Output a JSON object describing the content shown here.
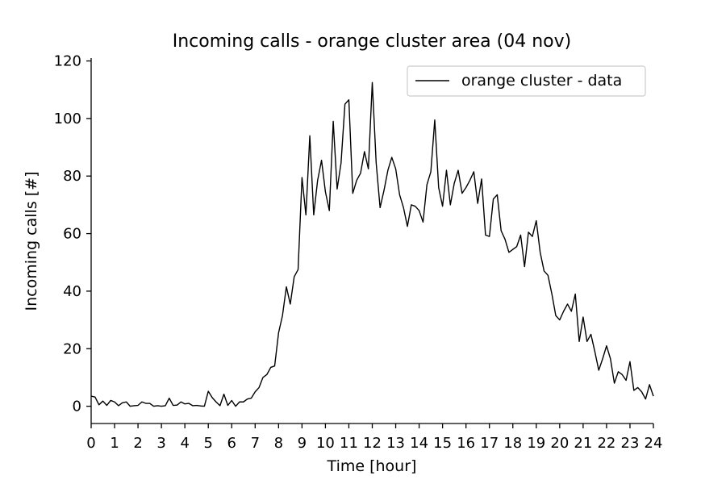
{
  "chart_data": {
    "type": "line",
    "title": "Incoming calls - orange cluster area (04 nov)",
    "xlabel": "Time [hour]",
    "ylabel": "Incoming calls [#]",
    "xlim": [
      0,
      24
    ],
    "ylim": [
      -6,
      121
    ],
    "xticks": [
      0,
      1,
      2,
      3,
      4,
      5,
      6,
      7,
      8,
      9,
      10,
      11,
      12,
      13,
      14,
      15,
      16,
      17,
      18,
      19,
      20,
      21,
      22,
      23,
      24
    ],
    "yticks": [
      0,
      20,
      40,
      60,
      80,
      100,
      120
    ],
    "grid": false,
    "legend_position": "top-right",
    "series": [
      {
        "name": "orange cluster - data",
        "color": "#000000",
        "x": [
          0,
          0.1667,
          0.3333,
          0.5,
          0.6667,
          0.8333,
          1,
          1.1667,
          1.3333,
          1.5,
          1.6667,
          1.8333,
          2,
          2.1667,
          2.3333,
          2.5,
          2.6667,
          2.8333,
          3,
          3.1667,
          3.3333,
          3.5,
          3.6667,
          3.8333,
          4,
          4.1667,
          4.3333,
          4.5,
          4.6667,
          4.8333,
          5,
          5.1667,
          5.3333,
          5.5,
          5.6667,
          5.8333,
          6,
          6.1667,
          6.3333,
          6.5,
          6.6667,
          6.8333,
          7,
          7.1667,
          7.3333,
          7.5,
          7.6667,
          7.8333,
          8,
          8.1667,
          8.3333,
          8.5,
          8.6667,
          8.8333,
          9,
          9.1667,
          9.3333,
          9.5,
          9.6667,
          9.8333,
          10,
          10.1667,
          10.3333,
          10.5,
          10.6667,
          10.8333,
          11,
          11.1667,
          11.3333,
          11.5,
          11.6667,
          11.8333,
          12,
          12.1667,
          12.3333,
          12.5,
          12.6667,
          12.8333,
          13,
          13.1667,
          13.3333,
          13.5,
          13.6667,
          13.8333,
          14,
          14.1667,
          14.3333,
          14.5,
          14.6667,
          14.8333,
          15,
          15.1667,
          15.3333,
          15.5,
          15.6667,
          15.8333,
          16,
          16.1667,
          16.3333,
          16.5,
          16.6667,
          16.8333,
          17,
          17.1667,
          17.3333,
          17.5,
          17.6667,
          17.8333,
          18,
          18.1667,
          18.3333,
          18.5,
          18.6667,
          18.8333,
          19,
          19.1667,
          19.3333,
          19.5,
          19.6667,
          19.8333,
          20,
          20.1667,
          20.3333,
          20.5,
          20.6667,
          20.8333,
          21,
          21.1667,
          21.3333,
          21.5,
          21.6667,
          21.8333,
          22,
          22.1667,
          22.3333,
          22.5,
          22.6667,
          22.8333,
          23,
          23.1667,
          23.3333,
          23.5,
          23.6667,
          23.8333,
          24
        ],
        "y": [
          3.5,
          3.2,
          0.5,
          1.8,
          0.3,
          2,
          1.5,
          0.2,
          1.2,
          1.5,
          0,
          0.2,
          0.3,
          1.5,
          1,
          1,
          0,
          0.2,
          0,
          0.2,
          2.8,
          0.3,
          0.4,
          1.5,
          0.8,
          1,
          0.2,
          0.3,
          0.1,
          0,
          5.2,
          3,
          1.5,
          0.2,
          4.2,
          0.3,
          2,
          0,
          1.5,
          1.5,
          2.5,
          2.8,
          5,
          6.5,
          10,
          11,
          13.5,
          14,
          25.5,
          31.5,
          41.5,
          35.5,
          45,
          47.5,
          79.5,
          66.5,
          94,
          66.5,
          78.5,
          85.5,
          74.5,
          68,
          99,
          75.5,
          84.5,
          105,
          106.5,
          74,
          78.5,
          81,
          88.5,
          82.5,
          112.5,
          84.5,
          69,
          75,
          82,
          86.5,
          82.5,
          73.5,
          69,
          62.5,
          70,
          69.5,
          68,
          64,
          77,
          81.5,
          99.5,
          76,
          69.5,
          82,
          70,
          77.5,
          82,
          74,
          76,
          78.5,
          81.5,
          70.5,
          79,
          59.5,
          59,
          72,
          73.5,
          61,
          58,
          53.5,
          54.5,
          55.5,
          59.5,
          48.5,
          60.5,
          59,
          64.5,
          53.5,
          47,
          45.5,
          39,
          31.5,
          30,
          33,
          35.5,
          33,
          39,
          22.5,
          31,
          22.5,
          25,
          19,
          12.5,
          16.5,
          21,
          16.5,
          8,
          12,
          11,
          9,
          15.5,
          5.5,
          6.5,
          5,
          2.5,
          7.5,
          3.5
        ]
      }
    ]
  }
}
